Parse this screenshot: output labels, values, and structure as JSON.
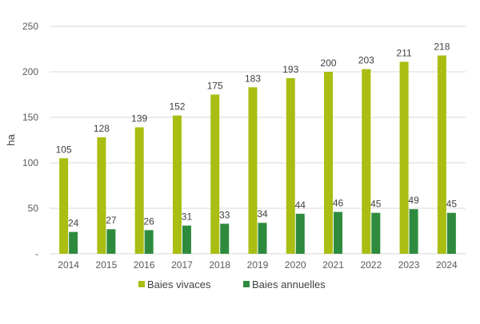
{
  "chart_data": {
    "type": "bar",
    "categories": [
      "2014",
      "2015",
      "2016",
      "2017",
      "2018",
      "2019",
      "2020",
      "2021",
      "2022",
      "2023",
      "2024"
    ],
    "series": [
      {
        "name": "Baies vivaces",
        "values": [
          105,
          128,
          139,
          152,
          175,
          183,
          193,
          200,
          203,
          211,
          218
        ],
        "color": "#a9bd12"
      },
      {
        "name": "Baies annuelles",
        "values": [
          24,
          27,
          26,
          31,
          33,
          34,
          44,
          46,
          45,
          49,
          45
        ],
        "color": "#2e8b3e"
      }
    ],
    "ylabel": "ha",
    "ylim": [
      0,
      250
    ],
    "yticks": [
      0,
      50,
      100,
      150,
      200,
      250
    ],
    "ytick_labels": [
      "-",
      "50",
      "100",
      "150",
      "200",
      "250"
    ],
    "grid": true,
    "legend": "bottom"
  }
}
